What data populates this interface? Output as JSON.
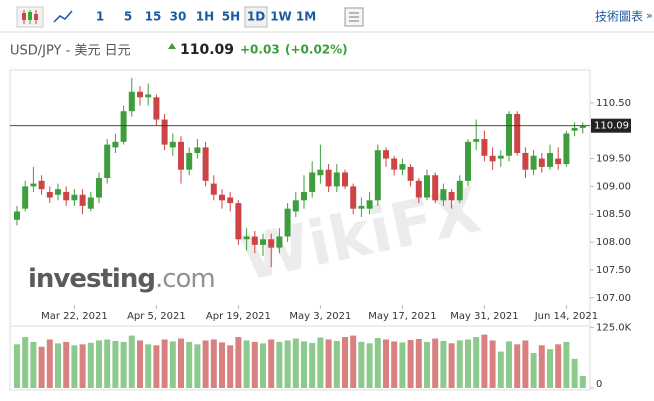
{
  "toolbar": {
    "intervals": [
      "1",
      "5",
      "15",
      "30",
      "1H",
      "5H",
      "1D",
      "1W",
      "1M"
    ],
    "active": "1D",
    "link": "技術圖表"
  },
  "header": {
    "symbol": "USD/JPY - 美元 日元",
    "price": "110.09",
    "change": "+0.03",
    "change_pct": "(+0.02%)"
  },
  "watermarks": {
    "logo": [
      "investing",
      ".com"
    ],
    "wikifx": "WikiFX"
  },
  "chart_data": [
    {
      "type": "candlestick",
      "categories": [
        null,
        null,
        null,
        null,
        null,
        null,
        null,
        "Mar 22, 2021",
        null,
        null,
        null,
        null,
        null,
        null,
        null,
        null,
        null,
        "Apr 5, 2021",
        null,
        null,
        null,
        null,
        null,
        null,
        null,
        null,
        null,
        "Apr 19, 2021",
        null,
        null,
        null,
        null,
        null,
        null,
        null,
        null,
        null,
        "May 3, 2021",
        null,
        null,
        null,
        null,
        null,
        null,
        null,
        null,
        null,
        "May 17, 2021",
        null,
        null,
        null,
        null,
        null,
        null,
        null,
        null,
        null,
        "May 31, 2021",
        null,
        null,
        null,
        null,
        null,
        null,
        null,
        null,
        null,
        "Jun 14, 2021",
        null,
        null
      ],
      "open": [
        108.4,
        108.6,
        109.0,
        109.1,
        108.9,
        108.85,
        108.9,
        108.75,
        108.85,
        108.6,
        108.8,
        109.15,
        109.7,
        109.8,
        110.35,
        110.7,
        110.6,
        110.6,
        110.2,
        109.7,
        109.8,
        109.3,
        109.6,
        109.7,
        109.05,
        108.85,
        108.8,
        108.7,
        108.05,
        108.1,
        107.95,
        108.05,
        107.9,
        108.1,
        108.55,
        108.75,
        108.9,
        109.2,
        109.3,
        109.0,
        109.25,
        109.0,
        108.6,
        108.6,
        108.75,
        109.65,
        109.5,
        109.3,
        109.35,
        109.1,
        108.8,
        109.2,
        108.75,
        108.9,
        108.75,
        109.1,
        109.8,
        109.85,
        109.55,
        109.5,
        109.55,
        110.3,
        109.6,
        109.3,
        109.5,
        109.35,
        109.5,
        109.4,
        110.0,
        110.05
      ],
      "high": [
        108.65,
        109.1,
        109.35,
        109.2,
        109.0,
        109.05,
        109.0,
        108.95,
        108.95,
        108.9,
        109.25,
        109.85,
        109.95,
        110.45,
        110.95,
        110.8,
        110.85,
        110.65,
        110.3,
        109.95,
        109.9,
        109.7,
        109.85,
        109.8,
        109.2,
        108.95,
        108.9,
        108.75,
        108.25,
        108.2,
        108.15,
        108.15,
        108.25,
        108.7,
        108.9,
        109.2,
        109.45,
        109.75,
        109.4,
        109.4,
        109.3,
        109.05,
        108.8,
        108.9,
        109.75,
        109.7,
        109.55,
        109.5,
        109.4,
        109.15,
        109.3,
        109.25,
        109.05,
        108.95,
        109.2,
        109.85,
        110.2,
        110.0,
        109.7,
        109.65,
        110.35,
        110.35,
        109.7,
        109.65,
        109.6,
        109.75,
        109.7,
        110.0,
        110.15,
        110.15
      ],
      "low": [
        108.3,
        108.55,
        108.9,
        108.85,
        108.7,
        108.75,
        108.65,
        108.65,
        108.5,
        108.55,
        108.7,
        109.05,
        109.6,
        109.75,
        110.25,
        110.45,
        110.45,
        110.1,
        109.65,
        109.55,
        109.05,
        109.2,
        109.5,
        109.0,
        108.75,
        108.6,
        108.55,
        107.95,
        107.85,
        107.8,
        107.75,
        107.55,
        107.8,
        108.0,
        108.45,
        108.6,
        108.8,
        109.05,
        108.9,
        108.9,
        108.95,
        108.5,
        108.45,
        108.5,
        108.65,
        109.35,
        109.2,
        109.2,
        109.0,
        108.7,
        108.75,
        108.7,
        108.65,
        108.6,
        108.7,
        109.0,
        109.65,
        109.45,
        109.3,
        109.35,
        109.45,
        109.55,
        109.15,
        109.2,
        109.25,
        109.3,
        109.3,
        109.35,
        109.9,
        109.95
      ],
      "close": [
        108.55,
        109.0,
        109.05,
        108.95,
        108.8,
        108.95,
        108.75,
        108.85,
        108.65,
        108.8,
        109.15,
        109.75,
        109.8,
        110.35,
        110.7,
        110.6,
        110.65,
        110.2,
        109.75,
        109.8,
        109.3,
        109.6,
        109.7,
        109.1,
        108.85,
        108.75,
        108.7,
        108.05,
        108.1,
        107.95,
        108.05,
        107.9,
        108.1,
        108.6,
        108.75,
        108.9,
        109.25,
        109.3,
        109.0,
        109.25,
        109.0,
        108.6,
        108.65,
        108.75,
        109.65,
        109.5,
        109.3,
        109.4,
        109.1,
        108.8,
        109.2,
        108.75,
        108.95,
        108.75,
        109.1,
        109.8,
        109.85,
        109.55,
        109.45,
        109.55,
        110.3,
        109.6,
        109.3,
        109.55,
        109.35,
        109.6,
        109.4,
        109.95,
        110.05,
        110.09
      ],
      "up_color": "#3e9e3e",
      "down_color": "#cc4444",
      "last_price": 110.09,
      "ylim": [
        106.87,
        111.09
      ],
      "yticks": [
        {
          "value": 110.5,
          "label": "110.50"
        },
        {
          "value": 109.5,
          "label": "109.50"
        },
        {
          "value": 109,
          "label": "109.00"
        },
        {
          "value": 108.5,
          "label": "108.50"
        },
        {
          "value": 108,
          "label": "108.00"
        },
        {
          "value": 107.5,
          "label": "107.50"
        },
        {
          "value": 107,
          "label": "107.00"
        }
      ]
    },
    {
      "type": "bar",
      "values": [
        90000,
        105000,
        95000,
        85000,
        100000,
        92000,
        95000,
        88000,
        90000,
        93000,
        98000,
        100000,
        97000,
        95000,
        108000,
        98000,
        90000,
        88000,
        100000,
        96000,
        102000,
        95000,
        90000,
        98000,
        100000,
        94000,
        88000,
        105000,
        98000,
        95000,
        92000,
        100000,
        95000,
        98000,
        102000,
        96000,
        93000,
        104000,
        100000,
        97000,
        105000,
        108000,
        95000,
        92000,
        103000,
        100000,
        96000,
        94000,
        99000,
        101000,
        95000,
        102000,
        97000,
        92000,
        98000,
        100000,
        105000,
        110000,
        98000,
        75000,
        96000,
        90000,
        98000,
        72000,
        88000,
        80000,
        90000,
        95000,
        60000,
        25000
      ],
      "up_color": "#8cc98c",
      "down_color": "#d98080",
      "ylim": [
        0,
        136000
      ],
      "yticks": [
        {
          "value": 125000,
          "label": "125.0K"
        },
        0
      ]
    }
  ]
}
